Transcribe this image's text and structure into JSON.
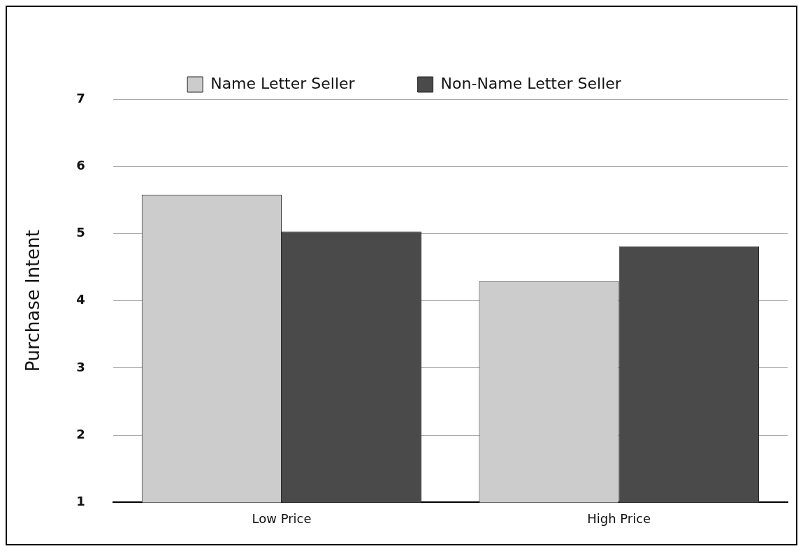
{
  "chart_data": {
    "type": "bar",
    "ylabel": "Purchase Intent",
    "categories": [
      "Low Price",
      "High Price"
    ],
    "series": [
      {
        "name": "Name Letter Seller",
        "color": "#cccccc",
        "values": [
          5.58,
          4.29
        ]
      },
      {
        "name": "Non-Name Letter Seller",
        "color": "#4a4a4a",
        "values": [
          5.03,
          4.81
        ]
      }
    ],
    "ylim": [
      1,
      7
    ],
    "yticks": [
      1,
      2,
      3,
      4,
      5,
      6,
      7
    ],
    "grid": "y",
    "legend": "top"
  }
}
